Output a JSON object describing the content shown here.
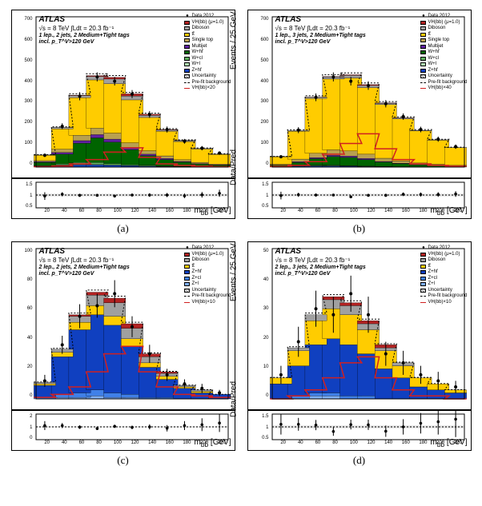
{
  "global": {
    "experiment": "ATLAS",
    "lumi": "√s = 8 TeV ∫Ldt = 20.3 fb⁻¹",
    "xlabel": "m_{bb̄} [GeV]",
    "ylabel_main": "Events / 25 GeV",
    "ylabel_ratio": "Data/Pred",
    "x_bins": [
      20,
      40,
      60,
      80,
      100,
      120,
      140,
      160,
      180,
      200,
      220
    ],
    "colors": {
      "VH": "#b22222",
      "Diboson": "#a0a0a0",
      "ttbar": "#ffcc00",
      "SingleTop": "#b8a050",
      "Multijet": "#6020a0",
      "Whf": "#006400",
      "Wcl": "#60b060",
      "Wl": "#b0e0b0",
      "Zhf": "#1040c0",
      "Zcl": "#4080e8",
      "Zl": "#80b0f8",
      "Uncertainty": "#888888",
      "Prefit": "#000000",
      "Signal": "#d02020",
      "Data": "#000000",
      "bg": "#ffffff",
      "grid": "#e0e0e0"
    }
  },
  "panels": [
    {
      "id": "a",
      "caption": "(a)",
      "selection": "1 lep., 2 jets, 2 Medium+Tight tags  incl. p_T^V>120 GeV",
      "signal_scale": "VH(bb)×20",
      "legend": [
        "Data 2012",
        "VH(bb) (μ=1.0)",
        "Diboson",
        "tt̄",
        "Single top",
        "Multijet",
        "W+hf",
        "W+cl",
        "W+l",
        "Z+hf",
        "Uncertainty",
        "Pre-fit background",
        "VH(bb)×20"
      ],
      "legend_colors": [
        "Data",
        "VH",
        "Diboson",
        "ttbar",
        "SingleTop",
        "Multijet",
        "Whf",
        "Wcl",
        "Wl",
        "Zhf",
        "Uncertainty",
        "Prefit",
        "Signal"
      ],
      "yaxis": {
        "min": 0,
        "max": 700,
        "step": 100
      },
      "ratio_yaxis": {
        "min": 0.5,
        "max": 1.5,
        "ticks": [
          0.5,
          1,
          1.5
        ]
      },
      "stacks": [
        {
          "key": "Zhf",
          "v": [
            5,
            8,
            10,
            10,
            8,
            6,
            4,
            3,
            2,
            1,
            1
          ]
        },
        {
          "key": "Wl",
          "v": [
            0,
            2,
            3,
            3,
            2,
            1,
            1,
            0,
            0,
            0,
            0
          ]
        },
        {
          "key": "Wcl",
          "v": [
            2,
            5,
            8,
            8,
            6,
            4,
            3,
            2,
            1,
            1,
            0
          ]
        },
        {
          "key": "Whf",
          "v": [
            15,
            45,
            90,
            115,
            100,
            70,
            45,
            30,
            20,
            12,
            8
          ]
        },
        {
          "key": "Multijet",
          "v": [
            3,
            8,
            12,
            15,
            14,
            10,
            7,
            5,
            3,
            2,
            1
          ]
        },
        {
          "key": "SingleTop",
          "v": [
            5,
            15,
            25,
            30,
            28,
            22,
            16,
            12,
            8,
            6,
            4
          ]
        },
        {
          "key": "ttbar",
          "v": [
            25,
            95,
            175,
            225,
            230,
            200,
            155,
            115,
            85,
            62,
            45
          ]
        },
        {
          "key": "Diboson",
          "v": [
            2,
            5,
            10,
            16,
            22,
            18,
            10,
            6,
            4,
            3,
            2
          ]
        },
        {
          "key": "VH",
          "v": [
            0,
            1,
            2,
            4,
            8,
            10,
            5,
            2,
            1,
            0,
            0
          ]
        }
      ],
      "total": [
        57,
        184,
        335,
        426,
        418,
        341,
        246,
        175,
        124,
        87,
        61
      ],
      "data": [
        55,
        190,
        330,
        420,
        400,
        340,
        245,
        175,
        120,
        88,
        65
      ],
      "data_err": [
        8,
        14,
        19,
        21,
        20,
        19,
        16,
        14,
        11,
        10,
        8
      ],
      "signal": [
        2,
        5,
        15,
        35,
        70,
        90,
        45,
        15,
        8,
        4,
        2
      ],
      "ratio": [
        0.96,
        1.03,
        0.99,
        0.99,
        0.96,
        1.0,
        1.0,
        1.0,
        0.97,
        1.01,
        1.07
      ],
      "ratio_err": [
        0.15,
        0.08,
        0.06,
        0.05,
        0.05,
        0.06,
        0.07,
        0.08,
        0.09,
        0.11,
        0.14
      ]
    },
    {
      "id": "b",
      "caption": "(b)",
      "selection": "1 lep., 3 jets, 2 Medium+Tight tags  incl. p_T^V>120 GeV",
      "signal_scale": "VH(bb)×40",
      "legend": [
        "Data 2012",
        "VH(bb) (μ=1.0)",
        "Diboson",
        "tt̄",
        "Single top",
        "Multijet",
        "W+hf",
        "W+cl",
        "W+l",
        "Z+hf",
        "Uncertainty",
        "Pre-fit background",
        "VH(bb)×40"
      ],
      "legend_colors": [
        "Data",
        "VH",
        "Diboson",
        "ttbar",
        "SingleTop",
        "Multijet",
        "Whf",
        "Wcl",
        "Wl",
        "Zhf",
        "Uncertainty",
        "Prefit",
        "Signal"
      ],
      "yaxis": {
        "min": 0,
        "max": 700,
        "step": 100
      },
      "ratio_yaxis": {
        "min": 0.5,
        "max": 1.5,
        "ticks": [
          0.5,
          1,
          1.5
        ]
      },
      "stacks": [
        {
          "key": "Zhf",
          "v": [
            2,
            4,
            5,
            5,
            4,
            3,
            2,
            1,
            1,
            1,
            0
          ]
        },
        {
          "key": "Wl",
          "v": [
            0,
            1,
            1,
            1,
            1,
            0,
            0,
            0,
            0,
            0,
            0
          ]
        },
        {
          "key": "Wcl",
          "v": [
            1,
            2,
            3,
            3,
            2,
            2,
            1,
            1,
            0,
            0,
            0
          ]
        },
        {
          "key": "Whf",
          "v": [
            5,
            15,
            30,
            40,
            38,
            30,
            20,
            14,
            9,
            6,
            4
          ]
        },
        {
          "key": "Multijet",
          "v": [
            1,
            3,
            5,
            6,
            6,
            5,
            3,
            2,
            1,
            1,
            0
          ]
        },
        {
          "key": "SingleTop",
          "v": [
            4,
            12,
            20,
            25,
            24,
            20,
            15,
            11,
            8,
            5,
            4
          ]
        },
        {
          "key": "ttbar",
          "v": [
            35,
            130,
            255,
            330,
            340,
            310,
            250,
            195,
            150,
            112,
            82
          ]
        },
        {
          "key": "Diboson",
          "v": [
            1,
            3,
            6,
            10,
            12,
            10,
            6,
            4,
            2,
            2,
            1
          ]
        },
        {
          "key": "VH",
          "v": [
            0,
            0,
            1,
            2,
            3,
            4,
            2,
            1,
            0,
            0,
            0
          ]
        }
      ],
      "total": [
        49,
        170,
        326,
        422,
        430,
        384,
        299,
        229,
        171,
        127,
        91
      ],
      "data": [
        48,
        172,
        325,
        420,
        400,
        380,
        295,
        235,
        175,
        130,
        95
      ],
      "data_err": [
        7,
        14,
        18,
        21,
        20,
        20,
        17,
        15,
        13,
        12,
        10
      ],
      "signal": [
        3,
        8,
        25,
        60,
        110,
        155,
        85,
        35,
        15,
        8,
        4
      ],
      "ratio": [
        0.98,
        1.01,
        1.0,
        1.0,
        0.93,
        0.99,
        0.99,
        1.03,
        1.02,
        1.02,
        1.04
      ],
      "ratio_err": [
        0.15,
        0.08,
        0.06,
        0.05,
        0.05,
        0.05,
        0.06,
        0.07,
        0.08,
        0.09,
        0.11
      ]
    },
    {
      "id": "c",
      "caption": "(c)",
      "selection": "2 lep., 2 jets, 2 Medium+Tight tags  incl. p_T^V>120 GeV",
      "signal_scale": "VH(bb)×10",
      "legend": [
        "Data 2012",
        "VH(bb) (μ=1.0)",
        "Diboson",
        "tt̄",
        "Z+hf",
        "Z+cl",
        "Z+l",
        "Uncertainty",
        "Pre-fit background",
        "VH(bb)×10"
      ],
      "legend_colors": [
        "Data",
        "VH",
        "Diboson",
        "ttbar",
        "Zhf",
        "Zcl",
        "Zl",
        "Uncertainty",
        "Prefit",
        "Signal"
      ],
      "yaxis": {
        "min": 0,
        "max": 100,
        "step": 20
      },
      "ratio_yaxis": {
        "min": 0,
        "max": 2,
        "ticks": [
          0,
          1,
          2
        ]
      },
      "stacks": [
        {
          "key": "Zl",
          "v": [
            0,
            1,
            1,
            2,
            1,
            1,
            0,
            0,
            0,
            0,
            0
          ]
        },
        {
          "key": "Zcl",
          "v": [
            1,
            2,
            3,
            4,
            3,
            2,
            1,
            1,
            0,
            0,
            0
          ]
        },
        {
          "key": "Zhf",
          "v": [
            8,
            25,
            42,
            50,
            45,
            32,
            20,
            12,
            7,
            4,
            3
          ]
        },
        {
          "key": "ttbar",
          "v": [
            1,
            3,
            5,
            6,
            6,
            5,
            3,
            2,
            1,
            1,
            0
          ]
        },
        {
          "key": "Diboson",
          "v": [
            1,
            2,
            4,
            7,
            9,
            7,
            4,
            2,
            1,
            1,
            0
          ]
        },
        {
          "key": "VH",
          "v": [
            0,
            0,
            1,
            2,
            3,
            3,
            2,
            1,
            0,
            0,
            0
          ]
        }
      ],
      "total": [
        11,
        33,
        56,
        71,
        67,
        50,
        30,
        18,
        9,
        6,
        3
      ],
      "data": [
        12,
        36,
        55,
        62,
        70,
        48,
        30,
        16,
        10,
        7,
        4
      ],
      "data_err": [
        4,
        6,
        8,
        8,
        9,
        7,
        6,
        4,
        3,
        3,
        2
      ],
      "signal": [
        1,
        3,
        8,
        18,
        30,
        35,
        18,
        8,
        3,
        2,
        1
      ],
      "ratio": [
        1.1,
        1.1,
        0.98,
        0.87,
        1.04,
        0.96,
        1.0,
        0.89,
        1.1,
        1.17,
        1.3
      ],
      "ratio_err": [
        0.35,
        0.2,
        0.14,
        0.12,
        0.13,
        0.14,
        0.2,
        0.25,
        0.35,
        0.5,
        0.7
      ]
    },
    {
      "id": "d",
      "caption": "(d)",
      "selection": "2 lep., 3 jets, 2 Medium+Tight tags  incl. p_T^V>120 GeV",
      "signal_scale": "VH(bb)×10",
      "legend": [
        "Data 2012",
        "VH(bb) (μ=1.0)",
        "Diboson",
        "tt̄",
        "Z+hf",
        "Z+cl",
        "Z+l",
        "Uncertainty",
        "Pre-fit background",
        "VH(bb)×10"
      ],
      "legend_colors": [
        "Data",
        "VH",
        "Diboson",
        "ttbar",
        "Zhf",
        "Zcl",
        "Zl",
        "Uncertainty",
        "Prefit",
        "Signal"
      ],
      "yaxis": {
        "min": 0,
        "max": 50,
        "step": 10
      },
      "ratio_yaxis": {
        "min": 0.5,
        "max": 1.5,
        "ticks": [
          0.5,
          1,
          1.5
        ]
      },
      "stacks": [
        {
          "key": "Zl",
          "v": [
            0,
            0,
            1,
            1,
            0,
            0,
            0,
            0,
            0,
            0,
            0
          ]
        },
        {
          "key": "Zcl",
          "v": [
            0,
            1,
            1,
            1,
            1,
            1,
            0,
            0,
            0,
            0,
            0
          ]
        },
        {
          "key": "Zhf",
          "v": [
            5,
            10,
            16,
            18,
            17,
            14,
            10,
            7,
            4,
            3,
            2
          ]
        },
        {
          "key": "ttbar",
          "v": [
            2,
            5,
            8,
            10,
            10,
            8,
            6,
            4,
            3,
            2,
            1
          ]
        },
        {
          "key": "Diboson",
          "v": [
            0,
            1,
            2,
            3,
            3,
            2,
            1,
            1,
            0,
            0,
            0
          ]
        },
        {
          "key": "VH",
          "v": [
            0,
            0,
            0,
            1,
            1,
            1,
            1,
            0,
            0,
            0,
            0
          ]
        }
      ],
      "total": [
        7,
        17,
        28,
        34,
        32,
        26,
        18,
        12,
        7,
        5,
        3
      ],
      "data": [
        8,
        19,
        30,
        28,
        35,
        28,
        15,
        12,
        8,
        6,
        4
      ],
      "data_err": [
        3,
        5,
        6,
        6,
        6,
        6,
        4,
        4,
        3,
        3,
        2
      ],
      "signal": [
        0,
        1,
        3,
        7,
        12,
        14,
        7,
        3,
        1,
        1,
        0
      ],
      "ratio": [
        1.1,
        1.1,
        1.07,
        0.82,
        1.09,
        1.08,
        0.83,
        1.0,
        1.14,
        1.2,
        1.3
      ],
      "ratio_err": [
        0.4,
        0.25,
        0.2,
        0.17,
        0.19,
        0.2,
        0.22,
        0.3,
        0.4,
        0.5,
        0.7
      ]
    }
  ]
}
